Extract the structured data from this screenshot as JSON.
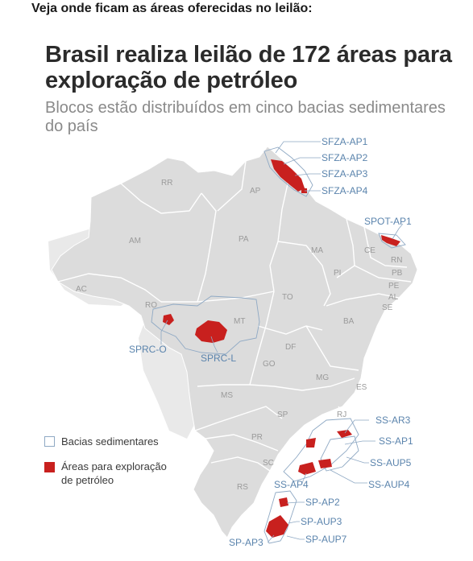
{
  "caption": "Veja onde ficam as áreas oferecidas no leilão:",
  "title": "Brasil realiza leilão de 172 áreas para exploração de petróleo",
  "subtitle": "Blocos estão distribuídos em cinco bacias sedimentares do país",
  "colors": {
    "land": "#dcdcdc",
    "neighbor": "#e6e6e6",
    "border": "#ffffff",
    "basin_outline": "#8fa9c4",
    "block_fill": "#c8201e"
  },
  "states": [
    "RR",
    "AP",
    "AM",
    "PA",
    "MA",
    "CE",
    "RN",
    "PB",
    "PI",
    "PE",
    "AL",
    "SE",
    "AC",
    "RO",
    "TO",
    "MT",
    "BA",
    "DF",
    "GO",
    "MG",
    "ES",
    "MS",
    "RJ",
    "SP",
    "PR",
    "SC",
    "RS"
  ],
  "areas": [
    "SFZA-AP1",
    "SFZA-AP2",
    "SFZA-AP3",
    "SFZA-AP4",
    "SPOT-AP1",
    "SPRC-O",
    "SPRC-L",
    "SS-AR3",
    "SS-AP1",
    "SS-AUP5",
    "SS-AP4",
    "SS-AUP4",
    "SP-AP2",
    "SP-AUP3",
    "SP-AP3",
    "SP-AUP7"
  ],
  "legend": {
    "basins": "Bacias sedimentares",
    "areas_line1": "Áreas para exploração",
    "areas_line2": "de petróleo"
  }
}
